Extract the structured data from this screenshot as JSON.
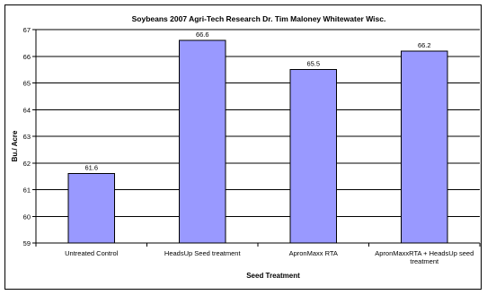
{
  "chart_data": {
    "type": "bar",
    "title": "Soybeans 2007 Agri-Tech Research Dr. Tim Maloney  Whitewater Wisc.",
    "xlabel": "Seed Treatment",
    "ylabel": "Bu./ Acre",
    "categories": [
      "Untreated Control",
      "HeadsUp Seed treatment",
      "ApronMaxx RTA",
      "ApronMaxxRTA + HeadsUp seed treatment"
    ],
    "category_lines": [
      [
        "Untreated Control"
      ],
      [
        "HeadsUp Seed treatment"
      ],
      [
        "ApronMaxx RTA"
      ],
      [
        "ApronMaxxRTA + HeadsUp seed",
        "treatment"
      ]
    ],
    "values": [
      61.6,
      66.6,
      65.5,
      66.2
    ],
    "data_labels": [
      "61.6",
      "66.6",
      "65.5",
      "66.2"
    ],
    "ylim": [
      59,
      67
    ],
    "yticks": [
      59,
      60,
      61,
      62,
      63,
      64,
      65,
      66,
      67
    ],
    "grid": true,
    "bar_color": "#9999ff",
    "bar_edge_color": "#000000"
  }
}
